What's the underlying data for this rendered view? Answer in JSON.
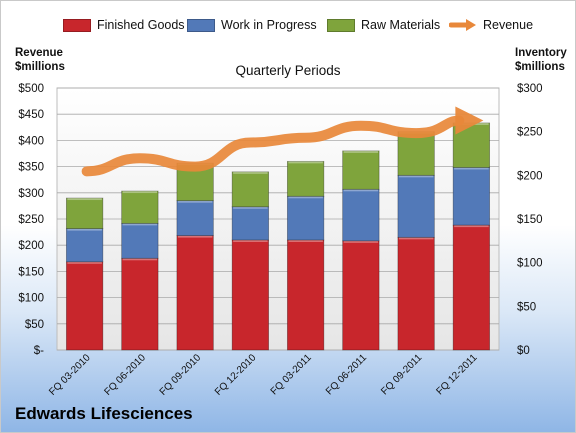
{
  "chart_data": {
    "type": "bar",
    "stacked": true,
    "subtitle": "Quarterly Periods",
    "company": "Edwards Lifesciences",
    "left_axis_title_line1": "Revenue",
    "left_axis_title_line2": "$millions",
    "right_axis_title_line1": "Inventory",
    "right_axis_title_line2": "$millions",
    "categories": [
      "FQ 03-2010",
      "FQ 06-2010",
      "FQ 09-2010",
      "FQ 12-2010",
      "FQ 03-2011",
      "FQ 06-2011",
      "FQ 09-2011",
      "FQ 12-2011"
    ],
    "left_ticks": [
      "$-",
      "$50",
      "$100",
      "$150",
      "$200",
      "$250",
      "$300",
      "$350",
      "$400",
      "$450",
      "$500"
    ],
    "right_ticks": [
      "$0",
      "$50",
      "$100",
      "$150",
      "$200",
      "$250",
      "$300"
    ],
    "ylim_left": [
      0,
      500
    ],
    "ylim_right": [
      0,
      300
    ],
    "grid": true,
    "legend_position": "top",
    "series": [
      {
        "name": "Finished Goods",
        "axis": "right",
        "color": "#c8262c",
        "values": [
          101,
          105,
          131,
          126,
          126,
          125,
          129,
          143
        ]
      },
      {
        "name": "Work in Progress",
        "axis": "right",
        "color": "#5279b8",
        "values": [
          38,
          40,
          40,
          38,
          50,
          59,
          71,
          66
        ]
      },
      {
        "name": "Raw Materials",
        "axis": "right",
        "color": "#7fa43c",
        "values": [
          35,
          37,
          43,
          40,
          40,
          44,
          50,
          51
        ]
      },
      {
        "name": "Revenue",
        "axis": "left",
        "color": "#e8883a",
        "type": "line",
        "values": [
          341,
          366,
          350,
          396,
          405,
          428,
          414,
          438
        ]
      }
    ]
  }
}
